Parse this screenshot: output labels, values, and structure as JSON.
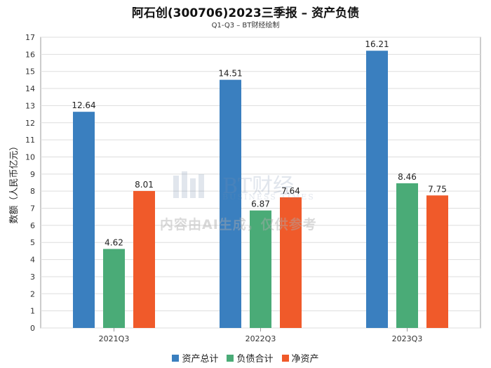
{
  "title": "阿石创(300706)2023三季报 – 资产负债",
  "subtitle": "Q1-Q3 – BT财经绘制",
  "watermark": {
    "brand": "BT财经",
    "brand_sub": "BUSINESS TIMES",
    "notice": "内容由AI生成，仅供参考"
  },
  "chart_data": {
    "type": "bar",
    "title": "阿石创(300706)2023三季报 – 资产负债",
    "subtitle": "Q1-Q3 – BT财经绘制",
    "xlabel": "",
    "ylabel": "数额（人民币亿元）",
    "categories": [
      "2021Q3",
      "2022Q3",
      "2023Q3"
    ],
    "ylim": [
      0,
      17
    ],
    "yticks": [
      0,
      1,
      2,
      3,
      4,
      5,
      6,
      7,
      8,
      9,
      10,
      11,
      12,
      13,
      14,
      15,
      16,
      17
    ],
    "grid": true,
    "legend_position": "bottom",
    "series": [
      {
        "name": "资产总计",
        "color": "#3a7fbf",
        "values": [
          12.64,
          14.51,
          16.21
        ],
        "labels": [
          "12.64",
          "14.51",
          "16.21"
        ]
      },
      {
        "name": "负债合计",
        "color": "#4aab77",
        "values": [
          4.62,
          6.87,
          8.46
        ],
        "labels": [
          "4.62",
          "6.87",
          "8.46"
        ]
      },
      {
        "name": "净资产",
        "color": "#f05a2a",
        "values": [
          8.01,
          7.64,
          7.75
        ],
        "labels": [
          "8.01",
          "7.64",
          "7.75"
        ]
      }
    ]
  }
}
